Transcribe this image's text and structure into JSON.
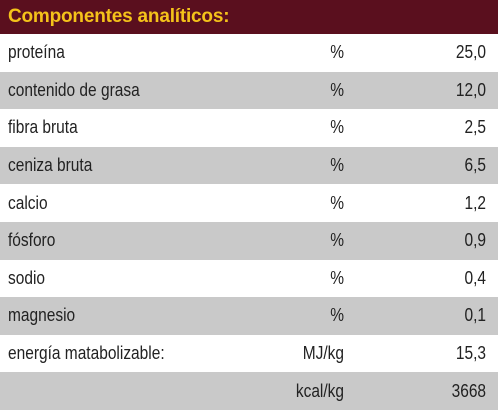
{
  "header": {
    "title": "Componentes analíticos:",
    "background": "#5a0f1e",
    "title_color": "#f4c21a"
  },
  "rows": [
    {
      "label": "proteína",
      "unit": "%",
      "value": "25,0"
    },
    {
      "label": "contenido de grasa",
      "unit": "%",
      "value": "12,0"
    },
    {
      "label": "fibra bruta",
      "unit": "%",
      "value": "2,5"
    },
    {
      "label": "ceniza bruta",
      "unit": "%",
      "value": "6,5"
    },
    {
      "label": "calcio",
      "unit": "%",
      "value": "1,2"
    },
    {
      "label": "fósforo",
      "unit": "%",
      "value": "0,9"
    },
    {
      "label": "sodio",
      "unit": "%",
      "value": "0,4"
    },
    {
      "label": "magnesio",
      "unit": "%",
      "value": "0,1"
    },
    {
      "label": "energía matabolizable:",
      "unit": "MJ/kg",
      "value": "15,3"
    },
    {
      "label": "",
      "unit": "kcal/kg",
      "value": "3668"
    }
  ],
  "colors": {
    "row_alt": "#c9c9c9",
    "row_base": "#ffffff",
    "text": "#222222"
  }
}
